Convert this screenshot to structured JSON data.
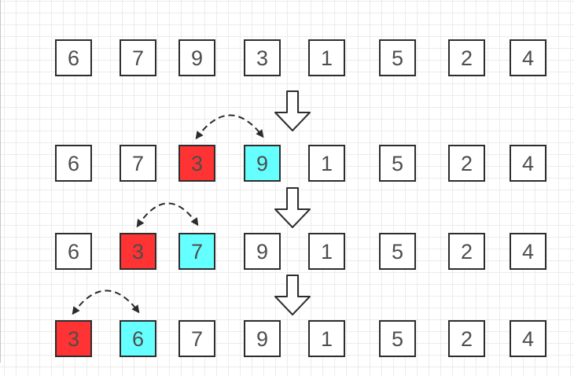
{
  "palette": {
    "background": "#FFFFFF",
    "grid_line_color": "#ECECEC",
    "page_edge_color": "#C6C6C6",
    "box_fill": "#FFFFFF",
    "box_border": "#2D2D2D",
    "digit_color": "#4D4D4D",
    "swap_source_fill": "#FF3333",
    "swap_target_fill": "#66FFFF",
    "connector_color": "#2B2B2B"
  },
  "rows": [
    {
      "name": "step-1",
      "cells": [
        {
          "value": "6"
        },
        {
          "value": "7"
        },
        {
          "value": "9"
        },
        {
          "value": "3"
        },
        {
          "value": "1"
        },
        {
          "value": "5"
        },
        {
          "value": "2"
        },
        {
          "value": "4"
        }
      ]
    },
    {
      "name": "step-2",
      "cells": [
        {
          "value": "6"
        },
        {
          "value": "7"
        },
        {
          "value": "3",
          "highlight": "source"
        },
        {
          "value": "9",
          "highlight": "target"
        },
        {
          "value": "1"
        },
        {
          "value": "5"
        },
        {
          "value": "2"
        },
        {
          "value": "4"
        }
      ]
    },
    {
      "name": "step-3",
      "cells": [
        {
          "value": "6"
        },
        {
          "value": "3",
          "highlight": "source"
        },
        {
          "value": "7",
          "highlight": "target"
        },
        {
          "value": "9"
        },
        {
          "value": "1"
        },
        {
          "value": "5"
        },
        {
          "value": "2"
        },
        {
          "value": "4"
        }
      ]
    },
    {
      "name": "step-4",
      "cells": [
        {
          "value": "3",
          "highlight": "source"
        },
        {
          "value": "6",
          "highlight": "target"
        },
        {
          "value": "7"
        },
        {
          "value": "9"
        },
        {
          "value": "1"
        },
        {
          "value": "5"
        },
        {
          "value": "2"
        },
        {
          "value": "4"
        }
      ]
    }
  ],
  "connectors": {
    "down_arrows": [
      {
        "between": [
          "step-1",
          "step-2"
        ]
      },
      {
        "between": [
          "step-2",
          "step-3"
        ]
      },
      {
        "between": [
          "step-3",
          "step-4"
        ]
      }
    ],
    "swap_arcs": [
      {
        "row_index": 1,
        "cells": [
          2,
          3
        ],
        "swapped_values": [
          "3",
          "9"
        ]
      },
      {
        "row_index": 2,
        "cells": [
          1,
          2
        ],
        "swapped_values": [
          "3",
          "7"
        ]
      },
      {
        "row_index": 3,
        "cells": [
          0,
          1
        ],
        "swapped_values": [
          "3",
          "6"
        ]
      }
    ]
  }
}
